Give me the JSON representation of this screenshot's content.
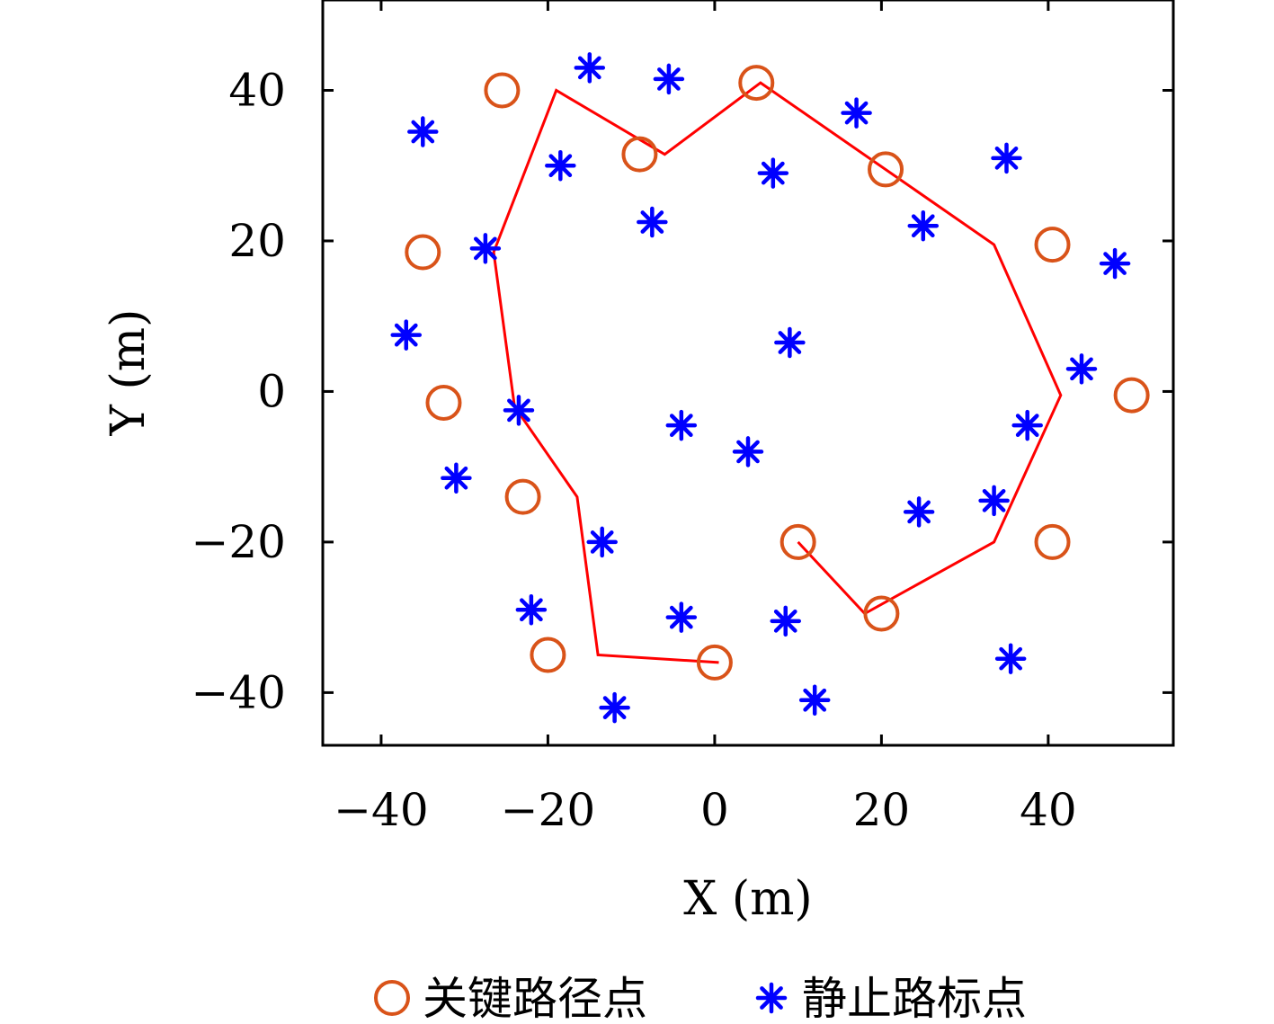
{
  "chart_data": {
    "type": "scatter",
    "xlabel": "X (m)",
    "ylabel": "Y (m)",
    "xlim": [
      -47,
      55
    ],
    "ylim": [
      -47,
      52
    ],
    "xticks": [
      -40,
      -20,
      0,
      20,
      40
    ],
    "yticks": [
      40,
      20,
      0,
      -20,
      -40
    ],
    "xtick_labels": [
      "−40",
      "−20",
      "0",
      "20",
      "40"
    ],
    "ytick_labels": [
      "40",
      "20",
      "0",
      "−20",
      "−40"
    ],
    "grid": false,
    "legend_position": "bottom",
    "colors": {
      "path": "#ff0000",
      "key_points": "#d95319",
      "landmarks": "#0000ff"
    },
    "series": [
      {
        "name": "关键路径点",
        "marker": "circle",
        "points": [
          [
            -25.5,
            40
          ],
          [
            -9,
            31.5
          ],
          [
            5,
            41
          ],
          [
            20.5,
            29.5
          ],
          [
            -35,
            18.5
          ],
          [
            40.5,
            19.5
          ],
          [
            -32.5,
            -1.5
          ],
          [
            50,
            -0.5
          ],
          [
            -23,
            -14
          ],
          [
            10,
            -20
          ],
          [
            40.5,
            -20
          ],
          [
            20,
            -29.5
          ],
          [
            -20,
            -35
          ],
          [
            0,
            -36
          ]
        ]
      },
      {
        "name": "静止路标点",
        "marker": "asterisk",
        "points": [
          [
            -15,
            43
          ],
          [
            -5.5,
            41.5
          ],
          [
            -35,
            34.5
          ],
          [
            17,
            37
          ],
          [
            -18.5,
            30
          ],
          [
            7,
            29
          ],
          [
            35,
            31
          ],
          [
            -7.5,
            22.5
          ],
          [
            25,
            22
          ],
          [
            -27.5,
            19
          ],
          [
            48,
            17
          ],
          [
            -37,
            7.5
          ],
          [
            9,
            6.5
          ],
          [
            44,
            3
          ],
          [
            -23.5,
            -2.5
          ],
          [
            -4,
            -4.5
          ],
          [
            37.5,
            -4.5
          ],
          [
            4,
            -8
          ],
          [
            -31,
            -11.5
          ],
          [
            24.5,
            -16
          ],
          [
            33.5,
            -14.5
          ],
          [
            -13.5,
            -20
          ],
          [
            -22,
            -29
          ],
          [
            -4,
            -30
          ],
          [
            8.5,
            -30.5
          ],
          [
            -12,
            -42
          ],
          [
            12,
            -41
          ],
          [
            35.5,
            -35.5
          ]
        ]
      },
      {
        "name": "",
        "type": "line",
        "points": [
          [
            0.5,
            -36
          ],
          [
            -14,
            -35
          ],
          [
            -16.5,
            -14
          ],
          [
            -24,
            -2
          ],
          [
            -26.5,
            18.5
          ],
          [
            -19,
            40
          ],
          [
            -6,
            31.5
          ],
          [
            5.5,
            41
          ],
          [
            33.5,
            19.5
          ],
          [
            41.5,
            -0.5
          ],
          [
            33.5,
            -20
          ],
          [
            18,
            -29.5
          ],
          [
            10,
            -20
          ]
        ]
      }
    ]
  }
}
